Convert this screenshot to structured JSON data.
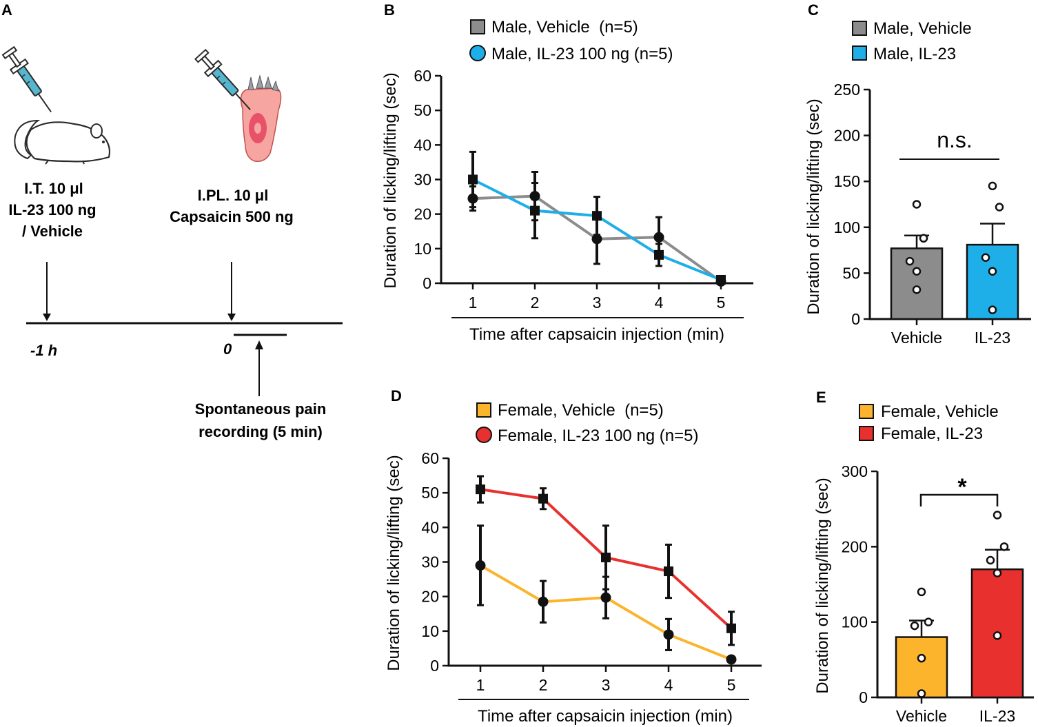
{
  "colors": {
    "gray": "#8c8c8c",
    "blue": "#1eaee8",
    "yellow": "#fbb42b",
    "red": "#e8312f",
    "skin": "#f7a5a0",
    "skin_dark": "#e8516a",
    "syringe": "#57b6cf"
  },
  "panel_a": {
    "letter": "A",
    "it_line1": "I.T. 10 μl",
    "it_line2": "IL-23 100 ng",
    "it_line3": "/ Vehicle",
    "ipl_line1": "I.PL. 10 μl",
    "ipl_line2": "Capsaicin 500 ng",
    "time_minus": "-1 h",
    "time_zero": "0",
    "rec_line1": "Spontaneous pain",
    "rec_line2": "recording (5 min)"
  },
  "chart_data": [
    {
      "panel": "B",
      "type": "line",
      "title": "",
      "xlabel": "Time after capsaicin injection (min)",
      "ylabel": "Duration of licking/lifting (sec)",
      "categories": [
        "1",
        "2",
        "3",
        "4",
        "5"
      ],
      "yticks": [
        "0",
        "10",
        "20",
        "30",
        "40",
        "50",
        "60"
      ],
      "ylim": [
        0,
        60
      ],
      "legend": "top",
      "series": [
        {
          "name": "Male, Vehicle  (n=5)",
          "color_key": "gray",
          "marker": "circle",
          "values": [
            24.5,
            25.2,
            12.8,
            13.3,
            0.5
          ],
          "errors": [
            3.5,
            7.0,
            7.2,
            5.8,
            0.8
          ]
        },
        {
          "name": "Male, IL-23 100 ng (n=5)",
          "color_key": "blue",
          "marker": "square",
          "values": [
            30.0,
            21.0,
            19.5,
            8.2,
            1.0
          ],
          "errors": [
            8.0,
            8.0,
            5.5,
            3.2,
            0.5
          ]
        }
      ]
    },
    {
      "panel": "C",
      "type": "bar",
      "title": "",
      "xlabel": "",
      "ylabel": "Duration of licking/lifting (sec)",
      "categories": [
        "Vehicle",
        "IL-23"
      ],
      "yticks": [
        "0",
        "50",
        "100",
        "150",
        "200",
        "250"
      ],
      "ylim": [
        0,
        250
      ],
      "legend": "top",
      "legend_labels": [
        "Male, Vehicle",
        "Male, IL-23"
      ],
      "color_keys": [
        "gray",
        "blue"
      ],
      "values": [
        77,
        81
      ],
      "errors": [
        14,
        23
      ],
      "points": [
        [
          125,
          88,
          63,
          52,
          32
        ],
        [
          145,
          122,
          67,
          52,
          10
        ]
      ],
      "annotation": "n.s."
    },
    {
      "panel": "D",
      "type": "line",
      "title": "",
      "xlabel": "Time after capsaicin injection (min)",
      "ylabel": "Duration of licking/lifting (sec)",
      "categories": [
        "1",
        "2",
        "3",
        "4",
        "5"
      ],
      "yticks": [
        "0",
        "10",
        "20",
        "30",
        "40",
        "50",
        "60"
      ],
      "ylim": [
        0,
        60
      ],
      "legend": "top",
      "series": [
        {
          "name": "Female, Vehicle  (n=5)",
          "color_key": "yellow",
          "marker": "circle",
          "values": [
            29.0,
            18.5,
            19.7,
            9.0,
            1.8
          ],
          "errors": [
            11.5,
            6.0,
            6.0,
            4.5,
            0.8
          ]
        },
        {
          "name": "Female, IL-23 100 ng (n=5)",
          "color_key": "red",
          "marker": "square",
          "values": [
            51.0,
            48.3,
            31.3,
            27.3,
            10.8
          ],
          "errors": [
            3.8,
            3.0,
            9.2,
            7.7,
            4.8
          ]
        }
      ]
    },
    {
      "panel": "E",
      "type": "bar",
      "title": "",
      "xlabel": "",
      "ylabel": "Duration of licking/lifting (sec)",
      "categories": [
        "Vehicle",
        "IL-23"
      ],
      "yticks": [
        "0",
        "100",
        "200",
        "300"
      ],
      "ylim": [
        0,
        300
      ],
      "legend": "top",
      "legend_labels": [
        "Female, Vehicle",
        "Female, IL-23"
      ],
      "color_keys": [
        "yellow",
        "red"
      ],
      "values": [
        80,
        170
      ],
      "errors": [
        22,
        26
      ],
      "points": [
        [
          140,
          100,
          95,
          52,
          5
        ],
        [
          242,
          200,
          182,
          165,
          82
        ]
      ],
      "annotation": "*"
    }
  ]
}
